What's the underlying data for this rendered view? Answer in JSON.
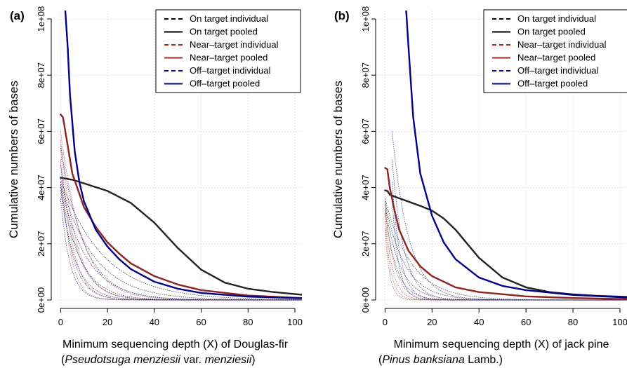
{
  "chart_data": [
    {
      "panel_label": "(a)",
      "type": "line",
      "ylabel": "Cumulative numbers of bases",
      "xlabel_line1": "Minimum sequencing depth (X) of Douglas-fir",
      "xlabel_line2_open": "(",
      "xlabel_line2_italic": "Pseudotsuga menziesii",
      "xlabel_line2_mid": " var. ",
      "xlabel_line2_italic2": "menziesii",
      "xlabel_line2_close": ")",
      "xlim": [
        0,
        100
      ],
      "ylim": [
        0,
        100000000
      ],
      "xticks": [
        0,
        20,
        40,
        60,
        80,
        100
      ],
      "xtick_labels": [
        "0",
        "20",
        "40",
        "60",
        "80",
        "100"
      ],
      "yticks": [
        0,
        20000000,
        40000000,
        60000000,
        80000000,
        100000000
      ],
      "ytick_labels": [
        "0e+00",
        "2e+07",
        "4e+07",
        "6e+07",
        "8e+07",
        "1e+08"
      ],
      "grid": true,
      "legend_position": "top-right",
      "legend": [
        {
          "label": "On target individual",
          "color": "#000000",
          "style": "dashed"
        },
        {
          "label": "On target pooled",
          "color": "#000000",
          "style": "solid"
        },
        {
          "label": "Near–target individual",
          "color": "#a52a2a",
          "style": "dashed"
        },
        {
          "label": "Near–target pooled",
          "color": "#a52a2a",
          "style": "solid"
        },
        {
          "label": "Off–target individual",
          "color": "#00008b",
          "style": "dashed"
        },
        {
          "label": "Off–target pooled",
          "color": "#00008b",
          "style": "solid"
        }
      ],
      "pooled_series": [
        {
          "name": "On target pooled",
          "color": "#222222",
          "x": [
            0,
            5,
            10,
            20,
            30,
            40,
            50,
            60,
            70,
            80,
            90,
            100,
            103
          ],
          "y": [
            43500000,
            42800000,
            41500000,
            38800000,
            34500000,
            27500000,
            18500000,
            10800000,
            6200000,
            4000000,
            2900000,
            2100000,
            1900000
          ]
        },
        {
          "name": "Near–target pooled",
          "color": "#8b2323",
          "x": [
            0,
            1,
            3,
            5,
            10,
            15,
            20,
            25,
            30,
            40,
            50,
            60,
            80,
            103
          ],
          "y": [
            66000000,
            65000000,
            55000000,
            45000000,
            33000000,
            26000000,
            20500000,
            16500000,
            13000000,
            8500000,
            5500000,
            3500000,
            1600000,
            700000
          ]
        },
        {
          "name": "Off–target pooled",
          "color": "#00008b",
          "x": [
            2,
            3,
            4,
            6,
            8,
            10,
            15,
            20,
            25,
            30,
            40,
            50,
            60,
            80,
            103
          ],
          "y": [
            103000000,
            90000000,
            73000000,
            53000000,
            42000000,
            35000000,
            25000000,
            19000000,
            14500000,
            11000000,
            6500000,
            4000000,
            2500000,
            1200000,
            600000
          ]
        }
      ],
      "individual_series": [
        {
          "color": "#000000",
          "y0": 43000000,
          "k": 0.055
        },
        {
          "color": "#000000",
          "y0": 42000000,
          "k": 0.07
        },
        {
          "color": "#000000",
          "y0": 41000000,
          "k": 0.09
        },
        {
          "color": "#000000",
          "y0": 40000000,
          "k": 0.12
        },
        {
          "color": "#000000",
          "y0": 39000000,
          "k": 0.16
        },
        {
          "color": "#a52a2a",
          "y0": 60000000,
          "k": 0.11
        },
        {
          "color": "#a52a2a",
          "y0": 57000000,
          "k": 0.15
        },
        {
          "color": "#a52a2a",
          "y0": 54000000,
          "k": 0.2
        },
        {
          "color": "#a52a2a",
          "y0": 50000000,
          "k": 0.26
        },
        {
          "color": "#00008b",
          "y0": 55000000,
          "k": 0.1
        },
        {
          "color": "#00008b",
          "y0": 48000000,
          "k": 0.14
        },
        {
          "color": "#00008b",
          "y0": 42000000,
          "k": 0.19
        },
        {
          "color": "#00008b",
          "y0": 36000000,
          "k": 0.25
        }
      ]
    },
    {
      "panel_label": "(b)",
      "type": "line",
      "ylabel": "Cumulative numbers of bases",
      "xlabel_line1": "Minimum sequencing depth (X) of jack pine",
      "xlabel_line2_open": "(",
      "xlabel_line2_italic": "Pinus banksiana",
      "xlabel_line2_mid": " Lamb.",
      "xlabel_line2_italic2": "",
      "xlabel_line2_close": ")",
      "xlim": [
        0,
        100
      ],
      "ylim": [
        0,
        100000000
      ],
      "xticks": [
        0,
        20,
        40,
        60,
        80,
        100
      ],
      "xtick_labels": [
        "0",
        "20",
        "40",
        "60",
        "80",
        "100"
      ],
      "yticks": [
        0,
        20000000,
        40000000,
        60000000,
        80000000,
        100000000
      ],
      "ytick_labels": [
        "0e+00",
        "2e+07",
        "4e+07",
        "6e+07",
        "8e+07",
        "1e+08"
      ],
      "grid": true,
      "legend_position": "top-right",
      "legend": [
        {
          "label": "On target individual",
          "color": "#000000",
          "style": "dashed"
        },
        {
          "label": "On target pooled",
          "color": "#000000",
          "style": "solid"
        },
        {
          "label": "Near–target individual",
          "color": "#a52a2a",
          "style": "dashed"
        },
        {
          "label": "Near–target pooled",
          "color": "#a52a2a",
          "style": "solid"
        },
        {
          "label": "Off–target individual",
          "color": "#00008b",
          "style": "dashed"
        },
        {
          "label": "Off–target pooled",
          "color": "#00008b",
          "style": "solid"
        }
      ],
      "pooled_series": [
        {
          "name": "On target pooled",
          "color": "#222222",
          "x": [
            0,
            1,
            2,
            5,
            10,
            15,
            20,
            25,
            30,
            35,
            40,
            50,
            60,
            70,
            80,
            90,
            100,
            103
          ],
          "y": [
            39000000,
            38800000,
            37500000,
            36500000,
            35000000,
            33500000,
            31800000,
            29000000,
            25000000,
            20000000,
            15000000,
            8000000,
            4500000,
            2800000,
            2000000,
            1500000,
            1200000,
            1100000
          ]
        },
        {
          "name": "Near–target pooled",
          "color": "#8b2323",
          "x": [
            0,
            1,
            2,
            4,
            6,
            10,
            15,
            20,
            30,
            40,
            60,
            80,
            103
          ],
          "y": [
            47000000,
            46500000,
            40000000,
            32000000,
            25000000,
            17500000,
            12000000,
            8500000,
            4500000,
            2800000,
            1300000,
            700000,
            300000
          ]
        },
        {
          "name": "Off–target pooled",
          "color": "#00008b",
          "x": [
            9,
            10,
            12,
            15,
            20,
            25,
            30,
            40,
            50,
            60,
            80,
            103
          ],
          "y": [
            103000000,
            90000000,
            65000000,
            45000000,
            30000000,
            20500000,
            14500000,
            8000000,
            5000000,
            3500000,
            1800000,
            900000
          ]
        }
      ],
      "individual_series": [
        {
          "color": "#000000",
          "y0": 36000000,
          "k": 0.09
        },
        {
          "color": "#000000",
          "y0": 35000000,
          "k": 0.12
        },
        {
          "color": "#000000",
          "y0": 34000000,
          "k": 0.16
        },
        {
          "color": "#000000",
          "y0": 32000000,
          "k": 0.21
        },
        {
          "color": "#a52a2a",
          "y0": 34000000,
          "k": 0.25
        },
        {
          "color": "#a52a2a",
          "y0": 31000000,
          "k": 0.32
        },
        {
          "color": "#a52a2a",
          "y0": 28000000,
          "k": 0.4
        },
        {
          "color": "#a52a2a",
          "y0": 25000000,
          "k": 0.5
        },
        {
          "color": "#00008b",
          "y0": 60000000,
          "k": 0.14,
          "x0": 3
        },
        {
          "color": "#00008b",
          "y0": 50000000,
          "k": 0.2,
          "x0": 3
        },
        {
          "color": "#00008b",
          "y0": 42000000,
          "k": 0.28,
          "x0": 3
        },
        {
          "color": "#00008b",
          "y0": 36000000,
          "k": 0.36,
          "x0": 3
        }
      ]
    }
  ]
}
